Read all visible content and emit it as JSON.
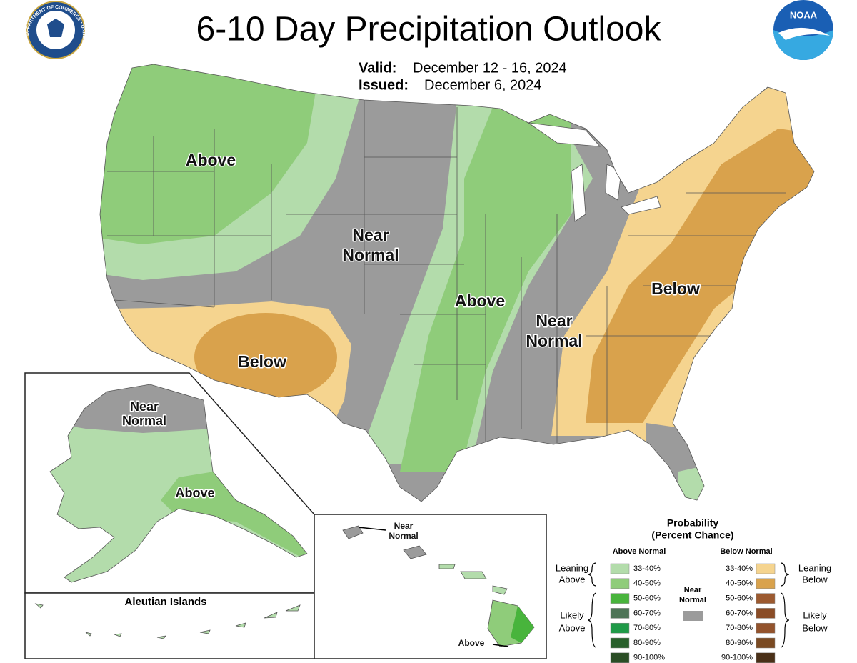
{
  "header": {
    "title": "6-10 Day Precipitation Outlook",
    "valid_label": "Valid:",
    "valid": "December 12 - 16, 2024",
    "issued_label": "Issued:",
    "issued": "December 6, 2024"
  },
  "logos": {
    "seal_text": "DEPARTMENT OF COMMERCE • UNITED STATES OF AMERICA",
    "noaa": "NOAA"
  },
  "conus_labels": [
    {
      "lines": [
        "Above"
      ]
    },
    {
      "lines": [
        "Near",
        "Normal"
      ]
    },
    {
      "lines": [
        "Below"
      ]
    },
    {
      "lines": [
        "Above"
      ]
    },
    {
      "lines": [
        "Near",
        "Normal"
      ]
    },
    {
      "lines": [
        "Below"
      ]
    }
  ],
  "alaska": {
    "labels": [
      {
        "lines": [
          "Near",
          "Normal"
        ]
      },
      {
        "lines": [
          "Above"
        ]
      }
    ],
    "aleutian_title": "Aleutian Islands"
  },
  "hawaii": {
    "labels": [
      {
        "lines": [
          "Near",
          "Normal"
        ]
      },
      {
        "lines": [
          "Above"
        ]
      }
    ]
  },
  "legend": {
    "title_lines": [
      "Probability",
      "(Percent Chance)"
    ],
    "above_heading": "Above Normal",
    "below_heading": "Below Normal",
    "above_rows": [
      {
        "range": "33-40%",
        "color": "#b3dcab"
      },
      {
        "range": "40-50%",
        "color": "#8fcc7a"
      },
      {
        "range": "50-60%",
        "color": "#48b43c"
      },
      {
        "range": "60-70%",
        "color": "#4e7457"
      },
      {
        "range": "70-80%",
        "color": "#1f9a48"
      },
      {
        "range": "80-90%",
        "color": "#285f2b"
      },
      {
        "range": "90-100%",
        "color": "#2a4d25"
      }
    ],
    "below_rows": [
      {
        "range": "33-40%",
        "color": "#f5d48f"
      },
      {
        "range": "40-50%",
        "color": "#d9a24c"
      },
      {
        "range": "50-60%",
        "color": "#9c5a30"
      },
      {
        "range": "60-70%",
        "color": "#8a4c26"
      },
      {
        "range": "70-80%",
        "color": "#93532c"
      },
      {
        "range": "80-90%",
        "color": "#7a4a22"
      },
      {
        "range": "90-100%",
        "color": "#4a3018"
      }
    ],
    "near_normal": {
      "lines": [
        "Near",
        "Normal"
      ],
      "color": "#9b9b9b"
    },
    "leaning_above": [
      "Leaning",
      "Above"
    ],
    "likely_above": [
      "Likely",
      "Above"
    ],
    "leaning_below": [
      "Leaning",
      "Below"
    ],
    "likely_below": [
      "Likely",
      "Below"
    ]
  }
}
